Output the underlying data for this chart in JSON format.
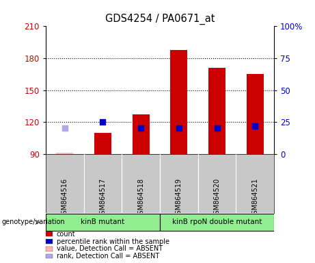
{
  "title": "GDS4254 / PA0671_at",
  "samples": [
    "GSM864516",
    "GSM864517",
    "GSM864518",
    "GSM864519",
    "GSM864520",
    "GSM864521"
  ],
  "count_values": [
    91,
    110,
    127,
    188,
    171,
    165
  ],
  "count_absent": [
    true,
    false,
    false,
    false,
    false,
    false
  ],
  "rank_values": [
    20,
    25,
    20,
    20,
    20,
    22
  ],
  "rank_absent": [
    true,
    false,
    false,
    false,
    false,
    false
  ],
  "ylim_left": [
    90,
    210
  ],
  "ylim_right": [
    0,
    100
  ],
  "yticks_left": [
    90,
    120,
    150,
    180,
    210
  ],
  "yticks_right": [
    0,
    25,
    50,
    75,
    100
  ],
  "hlines": [
    120,
    150,
    180
  ],
  "bar_color_present": "#CC0000",
  "bar_color_absent": "#FFB3B3",
  "rank_color_present": "#0000CC",
  "rank_color_absent": "#AAAAEE",
  "bar_width": 0.45,
  "rank_marker_size": 28,
  "groups": [
    {
      "label": "kinB mutant",
      "samples": [
        0,
        1,
        2
      ],
      "color": "#90EE90"
    },
    {
      "label": "kinB rpoN double mutant",
      "samples": [
        3,
        4,
        5
      ],
      "color": "#90EE90"
    }
  ],
  "legend_items": [
    {
      "label": "count",
      "color": "#CC0000"
    },
    {
      "label": "percentile rank within the sample",
      "color": "#0000CC"
    },
    {
      "label": "value, Detection Call = ABSENT",
      "color": "#FFB3B3"
    },
    {
      "label": "rank, Detection Call = ABSENT",
      "color": "#AAAAEE"
    }
  ],
  "sample_bg": "#C8C8C8",
  "plot_bg": "#FFFFFF",
  "outer_bg": "#FFFFFF",
  "tick_label_color_left": "#CC0000",
  "tick_label_color_right": "#0000CC"
}
